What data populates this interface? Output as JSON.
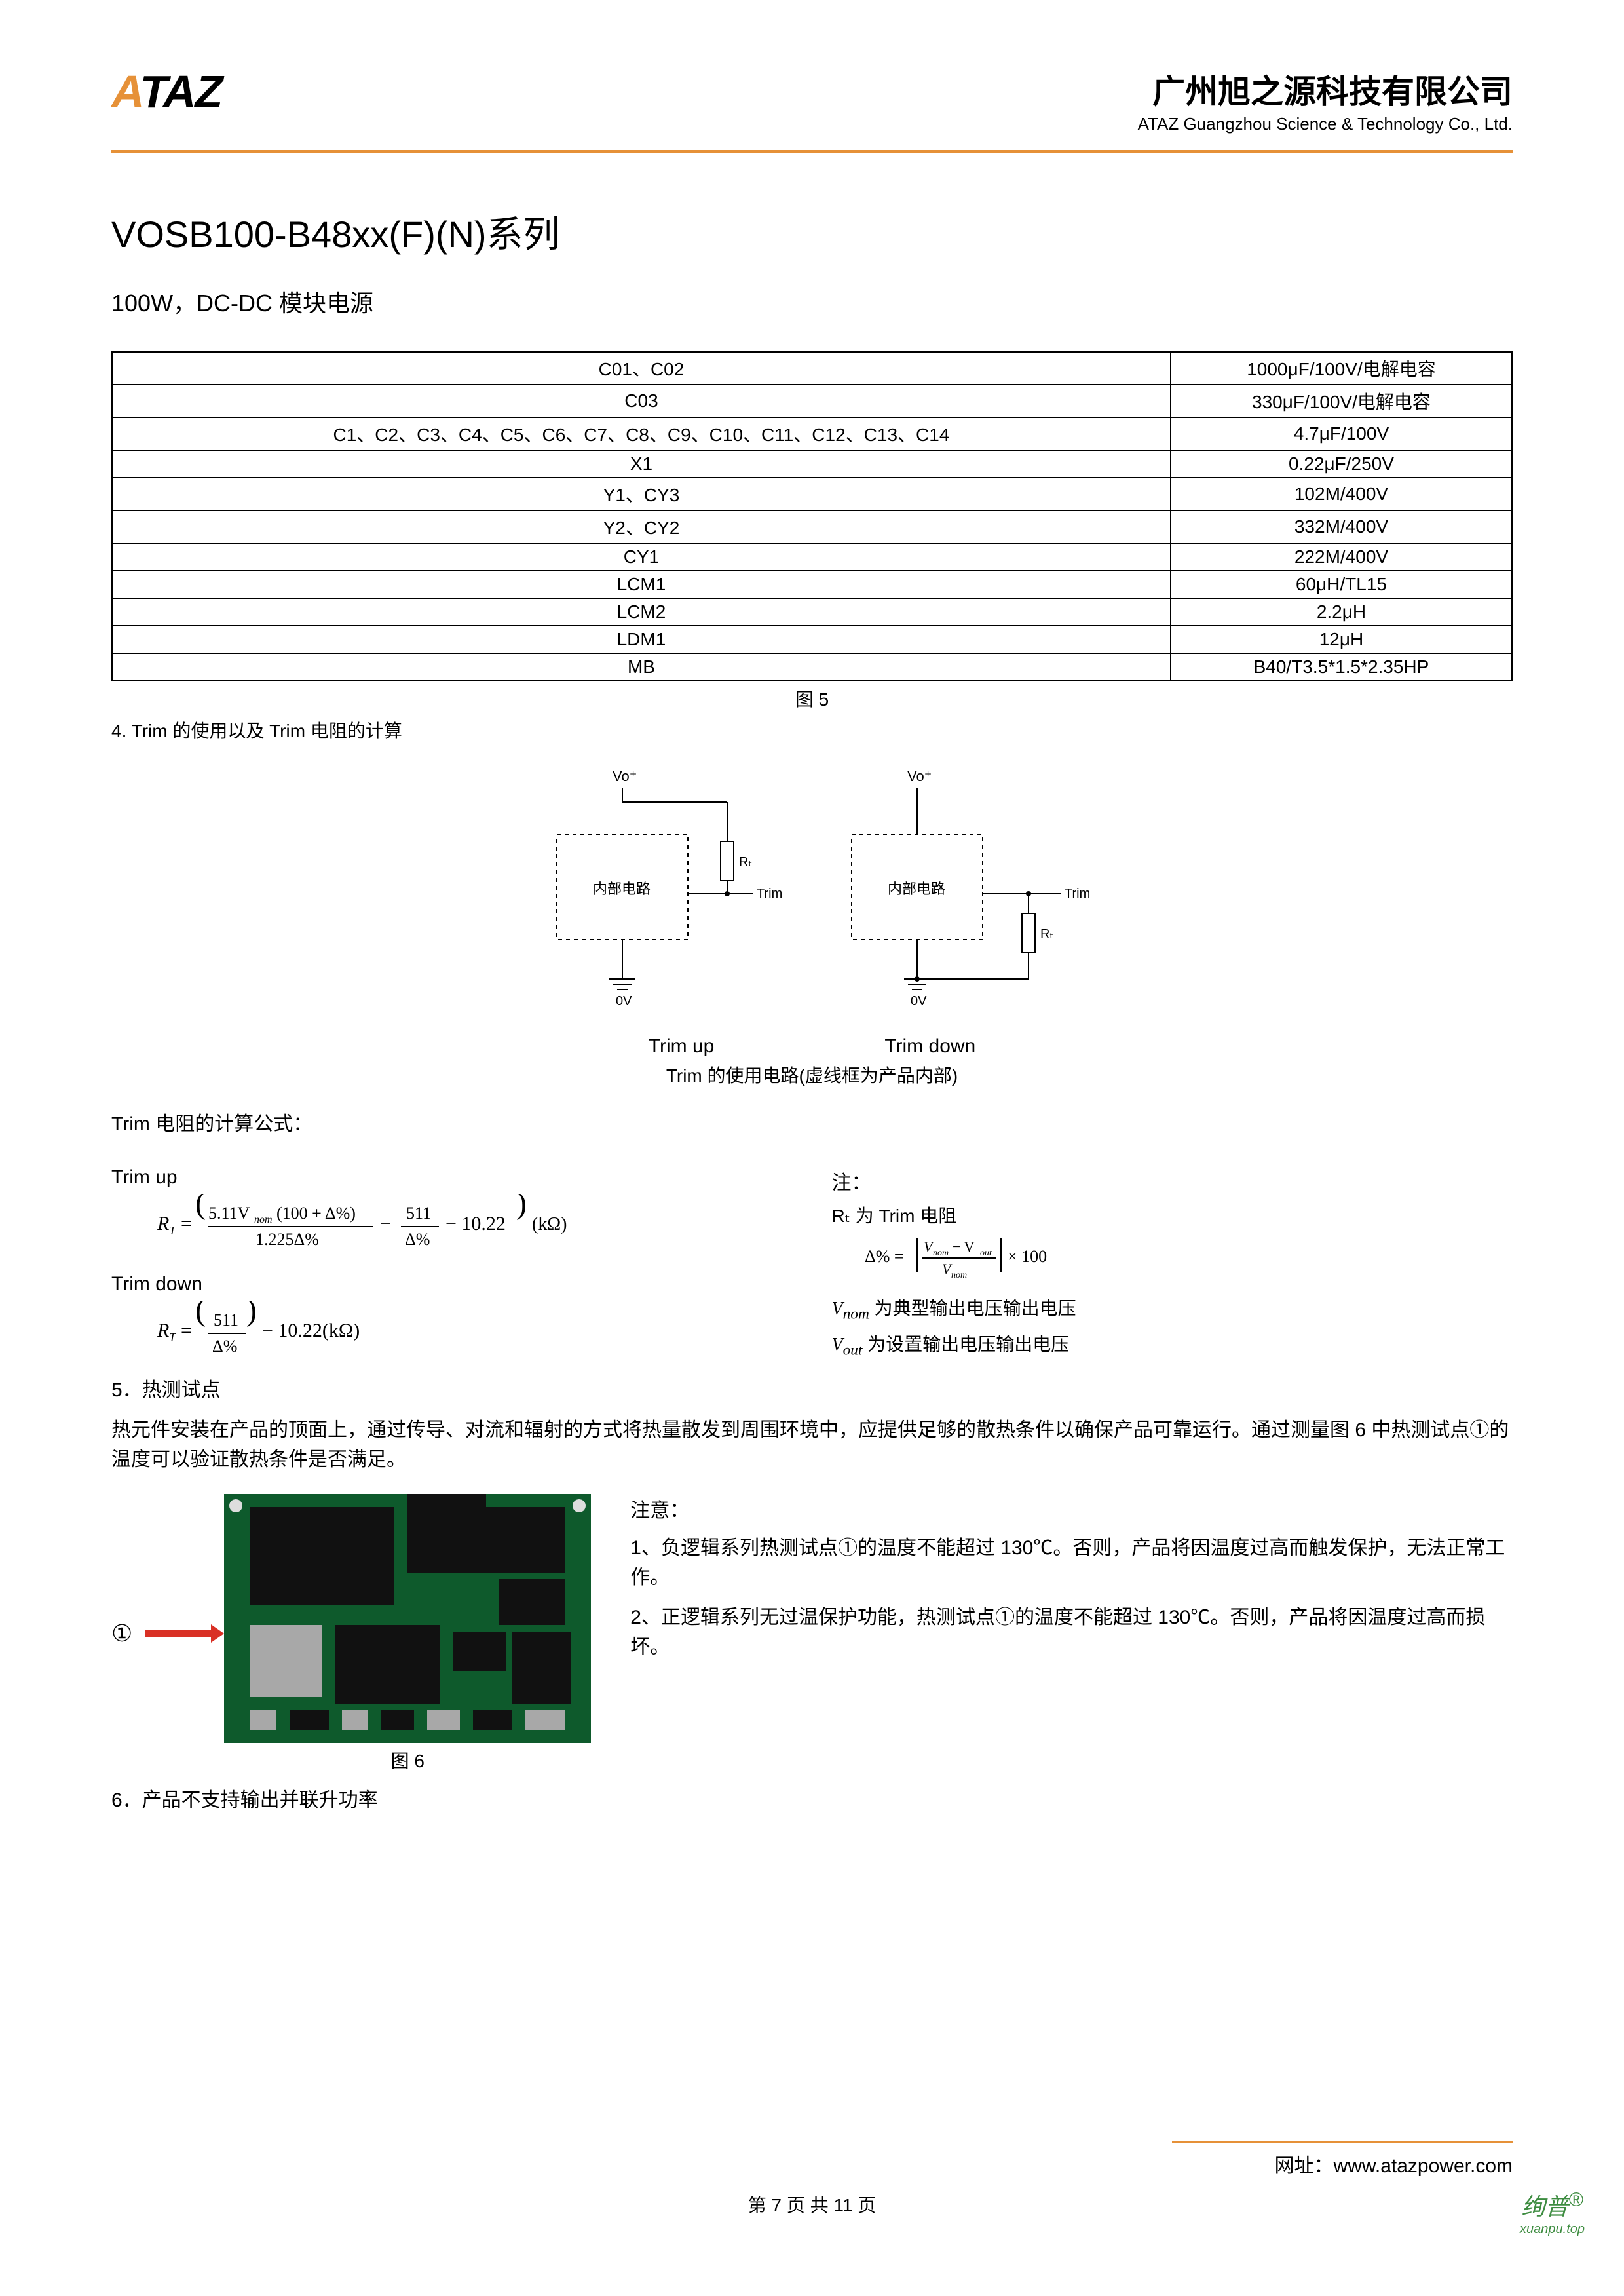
{
  "header": {
    "logo_a": "A",
    "logo_taz": "TAZ",
    "company_cn": "广州旭之源科技有限公司",
    "company_en": "ATAZ Guangzhou Science & Technology Co., Ltd."
  },
  "title": "VOSB100-B48xx(F)(N)系列",
  "subtitle": "100W，DC-DC 模块电源",
  "table": {
    "rows": [
      [
        "C01、C02",
        "1000μF/100V/电解电容"
      ],
      [
        "C03",
        "330μF/100V/电解电容"
      ],
      [
        "C1、C2、C3、C4、C5、C6、C7、C8、C9、C10、C11、C12、C13、C14",
        "4.7μF/100V"
      ],
      [
        "X1",
        "0.22μF/250V"
      ],
      [
        "Y1、CY3",
        "102M/400V"
      ],
      [
        "Y2、CY2",
        "332M/400V"
      ],
      [
        "CY1",
        "222M/400V"
      ],
      [
        "LCM1",
        "60μH/TL15"
      ],
      [
        "LCM2",
        "2.2μH"
      ],
      [
        "LDM1",
        "12μH"
      ],
      [
        "MB",
        "B40/T3.5*1.5*2.35HP"
      ]
    ]
  },
  "fig5_caption": "图 5",
  "section4": "4. Trim 的使用以及 Trim 电阻的计算",
  "trim_diagram": {
    "vo_label": "Vo⁺",
    "inner_label": "内部电路",
    "trim_label": "Trim",
    "rt_label": "Rₜ",
    "ov_label": "0V",
    "up_label": "Trim up",
    "down_label": "Trim down",
    "caption": "Trim 的使用电路(虚线框为产品内部)"
  },
  "formula": {
    "heading": "Trim 电阻的计算公式：",
    "up_heading": "Trim up",
    "up_formula_text": "Rₜ = (5.11V_nom(100+Δ%) / 1.225Δ% − 511/Δ% − 10.22)(kΩ)",
    "down_heading": "Trim down",
    "down_formula_text": "Rₜ = (511/Δ% − 10.22)(kΩ)",
    "notes_heading": "注：",
    "note1": "Rₜ 为 Trim 电阻",
    "note_delta_text": "Δ% = |V_nom − V_out| / V_nom × 100",
    "note_vnom": "V_nom 为典型输出电压输出电压",
    "note_vout": "V_out 为设置输出电压输出电压"
  },
  "section5": "5．热测试点",
  "thermal_paragraph": "热元件安装在产品的顶面上，通过传导、对流和辐射的方式将热量散发到周围环境中，应提供足够的散热条件以确保产品可靠运行。通过测量图 6 中热测试点①的温度可以验证散热条件是否满足。",
  "circled_one": "①",
  "fig6_caption": "图 6",
  "thermal_notes_heading": "注意：",
  "thermal_note1": "1、负逻辑系列热测试点①的温度不能超过 130℃。否则，产品将因温度过高而触发保护，无法正常工作。",
  "thermal_note2": "2、正逻辑系列无过温保护功能，热测试点①的温度不能超过 130℃。否则，产品将因温度过高而损坏。",
  "section6": "6．产品不支持输出并联升功率",
  "footer": {
    "url_label": "网址：",
    "url": "www.atazpower.com",
    "page_num": "第 7 页 共 11 页"
  },
  "watermark": {
    "main": "绚普",
    "reg": "®",
    "sub": "xuanpu.top"
  },
  "colors": {
    "accent": "#e69138",
    "pcb_green": "#0e5a2c",
    "pcb_dark": "#111111",
    "pcb_silver": "#a8a8a8",
    "arrow_red": "#d93025"
  }
}
